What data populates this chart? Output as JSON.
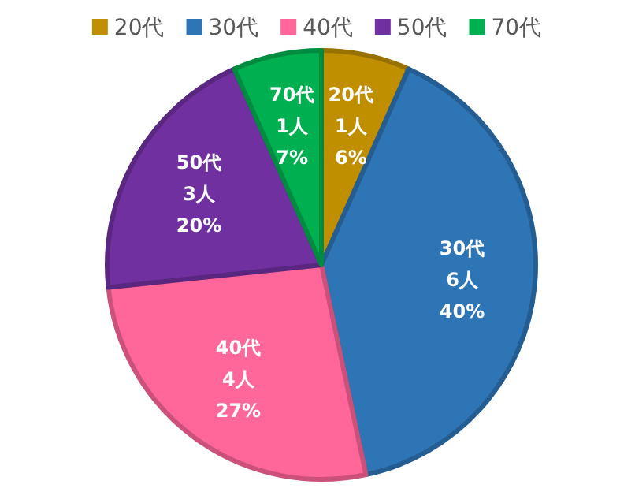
{
  "chart_data": {
    "type": "pie",
    "categories": [
      "20代",
      "30代",
      "40代",
      "50代",
      "70代"
    ],
    "values": [
      1,
      6,
      4,
      3,
      1
    ],
    "colors": [
      "#bf8f00",
      "#2e75b6",
      "#ff6699",
      "#7030a0",
      "#00b050"
    ],
    "value_labels": [
      "20代\n1人\n6%",
      "30代\n6人\n40%",
      "40代\n4人\n27%",
      "50代\n3人\n20%",
      "70代\n1人\n7%"
    ],
    "legend": "top"
  }
}
